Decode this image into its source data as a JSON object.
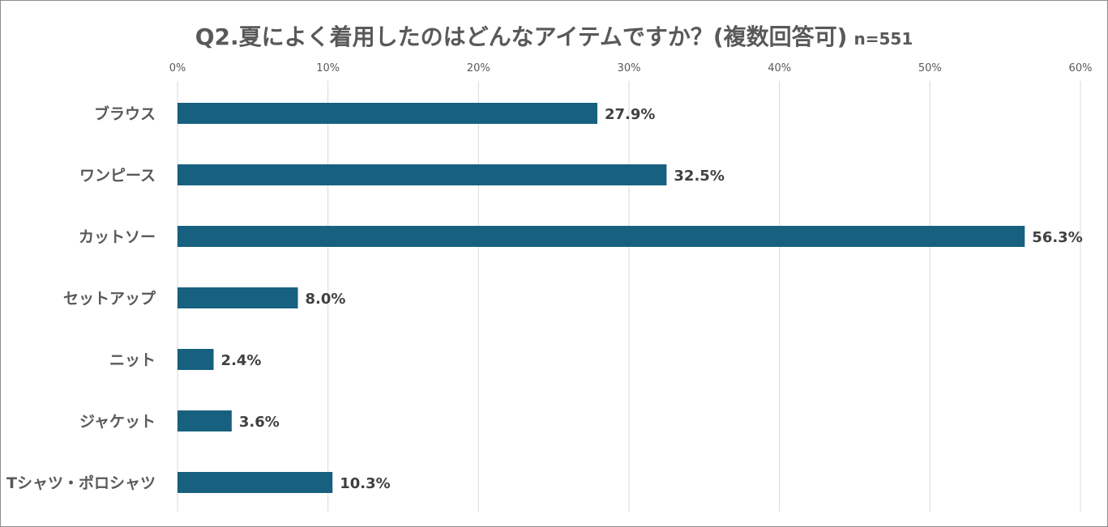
{
  "chart_data": {
    "type": "bar",
    "orientation": "horizontal",
    "title": "Q2.夏によく着用したのはどんなアイテムですか？(複数回答可)",
    "subtitle": "n=551",
    "categories": [
      "ブラウス",
      "ワンピース",
      "カットソー",
      "セットアップ",
      "ニット",
      "ジャケット",
      "Tシャツ・ポロシャツ"
    ],
    "values": [
      27.9,
      32.5,
      56.3,
      8.0,
      2.4,
      3.6,
      10.3
    ],
    "value_labels": [
      "27.9%",
      "32.5%",
      "56.3%",
      "8.0%",
      "2.4%",
      "3.6%",
      "10.3%"
    ],
    "xlim": [
      0,
      60
    ],
    "xticks": [
      "0%",
      "10%",
      "20%",
      "30%",
      "40%",
      "50%",
      "60%"
    ],
    "x_axis_position": "top",
    "grid": true,
    "legend": "none",
    "bar_color": "#17607f",
    "text_color": "#595959"
  }
}
